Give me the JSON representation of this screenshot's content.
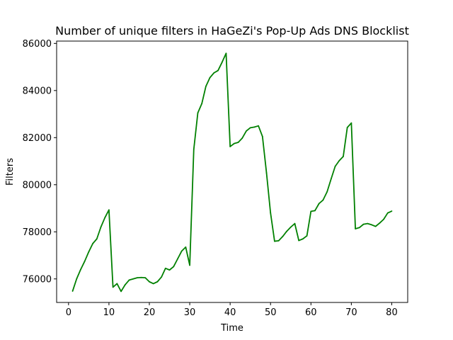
{
  "chart_data": {
    "type": "line",
    "title": "Number of unique filters in HaGeZi's Pop-Up Ads DNS Blocklist",
    "xlabel": "Time",
    "ylabel": "Filters",
    "xlim": [
      -2.95,
      83.95
    ],
    "ylim": [
      75000,
      86100
    ],
    "xticks": [
      0,
      10,
      20,
      30,
      40,
      50,
      60,
      70,
      80
    ],
    "yticks": [
      76000,
      78000,
      80000,
      82000,
      84000,
      86000
    ],
    "xtick_labels": [
      "0",
      "10",
      "20",
      "30",
      "40",
      "50",
      "60",
      "70",
      "80"
    ],
    "ytick_labels": [
      "76000",
      "78000",
      "80000",
      "82000",
      "84000",
      "86000"
    ],
    "grid": false,
    "legend": "none",
    "series": [
      {
        "color": "#008000",
        "x": [
          1,
          2,
          3,
          4,
          5,
          6,
          7,
          8,
          9,
          10,
          11,
          12,
          13,
          14,
          15,
          16,
          17,
          18,
          19,
          20,
          21,
          22,
          23,
          24,
          25,
          26,
          27,
          28,
          29,
          30,
          31,
          32,
          33,
          34,
          35,
          36,
          37,
          38,
          39,
          40,
          41,
          42,
          43,
          44,
          45,
          46,
          47,
          48,
          49,
          50,
          51,
          52,
          53,
          54,
          55,
          56,
          57,
          58,
          59,
          60,
          61,
          62,
          63,
          64,
          65,
          66,
          67,
          68,
          69,
          70,
          71,
          72,
          73,
          74,
          75,
          76,
          77,
          78,
          79,
          80
        ],
        "y": [
          75480,
          76000,
          76400,
          76750,
          77150,
          77500,
          77700,
          78200,
          78600,
          78930,
          75650,
          75800,
          75470,
          75750,
          75950,
          76000,
          76050,
          76060,
          76050,
          75880,
          75800,
          75880,
          76080,
          76450,
          76380,
          76520,
          76850,
          77180,
          77350,
          76580,
          81500,
          83050,
          83450,
          84180,
          84550,
          84750,
          84850,
          85200,
          85580,
          81620,
          81750,
          81800,
          81980,
          82280,
          82420,
          82450,
          82500,
          82050,
          80500,
          78800,
          77600,
          77620,
          77800,
          78020,
          78200,
          78350,
          77630,
          77700,
          77830,
          78870,
          78900,
          79200,
          79350,
          79700,
          80250,
          80780,
          81020,
          81200,
          82430,
          82620,
          78130,
          78180,
          78320,
          78350,
          78300,
          78230,
          78370,
          78530,
          78800,
          78880
        ]
      }
    ]
  }
}
